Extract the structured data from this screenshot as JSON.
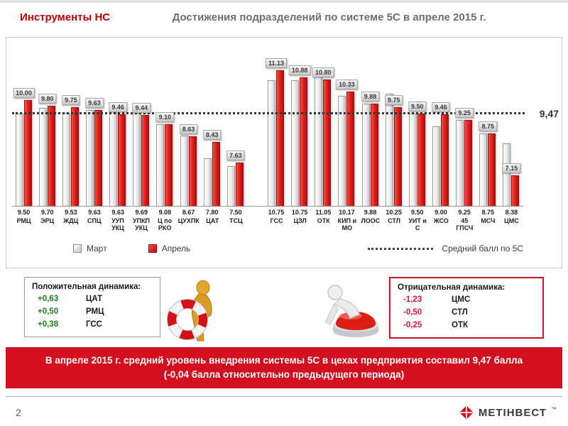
{
  "colors": {
    "accent_red": "#c00000",
    "bar_april_red": "#e2231a",
    "bar_march_gray": "#ececec",
    "banner_red": "#d20f1e",
    "positive_green": "#1f7a1f",
    "negative_red": "#e8112d"
  },
  "header": {
    "left_title": "Инструменты НС",
    "main_title": "Достижения подразделений по системе 5С в апреле 2015 г."
  },
  "chart_data": {
    "type": "bar",
    "title": "Достижения подразделений по системе 5С в апреле 2015 г.",
    "categories": [
      "РМЦ",
      "ЭРЦ",
      "ЖДЦ",
      "СПЦ",
      "УУП УКЦ",
      "УПКП УКЦ",
      "Ц по РКО",
      "ЦУХПК",
      "ЦАТ",
      "ТСЦ",
      "ГСС",
      "ЦЗЛ",
      "ОТК",
      "КИП и МО",
      "ЛООС",
      "СТЛ",
      "УИТ и С",
      "ЖСО",
      "45 ГПСЧ",
      "МСЧ",
      "ЦМС"
    ],
    "series": [
      {
        "name": "Март",
        "color": "#ececec",
        "values": [
          9.5,
          9.7,
          9.53,
          9.63,
          9.63,
          9.69,
          9.08,
          8.67,
          7.8,
          7.5,
          10.75,
          10.75,
          11.05,
          10.17,
          9.88,
          10.25,
          9.5,
          9.0,
          9.25,
          8.75,
          8.38
        ]
      },
      {
        "name": "Апрель",
        "color": "#e2231a",
        "values": [
          10.0,
          9.8,
          9.75,
          9.63,
          9.46,
          9.44,
          9.1,
          8.63,
          8.43,
          7.63,
          11.13,
          10.88,
          10.8,
          10.33,
          9.88,
          9.75,
          9.5,
          9.46,
          9.25,
          8.75,
          7.15
        ]
      }
    ],
    "average_line": {
      "value": 9.47,
      "label": "9,47",
      "legend_label": "Средний балл по 5С"
    },
    "ylim": [
      6,
      11.7
    ],
    "gap_before_index": 10,
    "grid": false,
    "legend_position": "bottom",
    "value_label_decimals": 2
  },
  "positive_box": {
    "title": "Положительная динамика:",
    "rows": [
      {
        "value": "+0,63",
        "name": "ЦАТ"
      },
      {
        "value": "+0,50",
        "name": "РМЦ"
      },
      {
        "value": "+0,38",
        "name": "ГСС"
      }
    ]
  },
  "negative_box": {
    "title": "Отрицательная динамика:",
    "rows": [
      {
        "value": "-1,23",
        "name": "ЦМС"
      },
      {
        "value": "-0,50",
        "name": "СТЛ"
      },
      {
        "value": "-0,25",
        "name": "ОТК"
      }
    ]
  },
  "banner": {
    "text": "В апреле 2015 г.  средний уровень внедрения системы 5С в цехах предприятия составил 9,47 балла (-0,04 балла относительно предыдущего периода)"
  },
  "footer": {
    "page_number": "2",
    "logo_text": "МЕТІНВЕСТ",
    "trademark": "™"
  }
}
